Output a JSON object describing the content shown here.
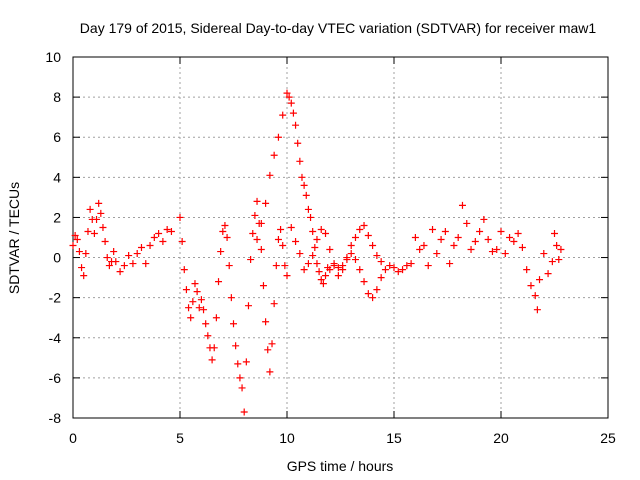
{
  "chart_data": {
    "type": "scatter",
    "title": "Day 179 of 2015, Sidereal Day-to-day VTEC variation (SDTVAR) for receiver maw1",
    "xlabel": "GPS time / hours",
    "ylabel": "SDTVAR / TECUs",
    "xlim": [
      0,
      25
    ],
    "ylim": [
      -8,
      10
    ],
    "xticks": [
      "0",
      "5",
      "10",
      "15",
      "20",
      "25"
    ],
    "yticks": [
      "-8",
      "-6",
      "-4",
      "-2",
      "0",
      "2",
      "4",
      "6",
      "8",
      "10"
    ],
    "grid": true,
    "marker": "plus",
    "color": "#ff0000",
    "series": [
      {
        "name": "SDTVAR",
        "points": [
          [
            0.0,
            0.6
          ],
          [
            0.1,
            1.1
          ],
          [
            0.2,
            0.9
          ],
          [
            0.3,
            0.3
          ],
          [
            0.4,
            -0.5
          ],
          [
            0.5,
            -0.9
          ],
          [
            0.6,
            0.2
          ],
          [
            0.7,
            1.3
          ],
          [
            0.8,
            2.4
          ],
          [
            0.9,
            1.9
          ],
          [
            1.0,
            1.2
          ],
          [
            1.1,
            1.9
          ],
          [
            1.2,
            2.7
          ],
          [
            1.3,
            2.2
          ],
          [
            1.4,
            1.5
          ],
          [
            1.5,
            0.8
          ],
          [
            1.6,
            0.0
          ],
          [
            1.7,
            -0.4
          ],
          [
            1.8,
            -0.2
          ],
          [
            1.9,
            0.3
          ],
          [
            2.0,
            -0.2
          ],
          [
            2.2,
            -0.7
          ],
          [
            2.4,
            -0.4
          ],
          [
            2.6,
            0.1
          ],
          [
            2.8,
            -0.3
          ],
          [
            3.0,
            0.2
          ],
          [
            3.2,
            0.5
          ],
          [
            3.4,
            -0.3
          ],
          [
            3.6,
            0.6
          ],
          [
            3.8,
            1.0
          ],
          [
            4.0,
            1.2
          ],
          [
            4.2,
            0.8
          ],
          [
            4.4,
            1.4
          ],
          [
            4.6,
            1.3
          ],
          [
            5.0,
            2.0
          ],
          [
            5.1,
            0.8
          ],
          [
            5.2,
            -0.6
          ],
          [
            5.3,
            -1.6
          ],
          [
            5.4,
            -2.5
          ],
          [
            5.5,
            -3.0
          ],
          [
            5.6,
            -2.2
          ],
          [
            5.7,
            -1.3
          ],
          [
            5.8,
            -1.7
          ],
          [
            5.9,
            -2.5
          ],
          [
            6.0,
            -2.1
          ],
          [
            6.1,
            -2.6
          ],
          [
            6.2,
            -3.3
          ],
          [
            6.3,
            -3.9
          ],
          [
            6.4,
            -4.5
          ],
          [
            6.5,
            -5.1
          ],
          [
            6.6,
            -4.5
          ],
          [
            6.7,
            -3.0
          ],
          [
            6.8,
            -1.2
          ],
          [
            6.9,
            0.3
          ],
          [
            7.0,
            1.3
          ],
          [
            7.1,
            1.6
          ],
          [
            7.2,
            1.0
          ],
          [
            7.3,
            -0.4
          ],
          [
            7.4,
            -2.0
          ],
          [
            7.5,
            -3.3
          ],
          [
            7.6,
            -4.4
          ],
          [
            7.7,
            -5.3
          ],
          [
            7.8,
            -6.0
          ],
          [
            7.9,
            -6.5
          ],
          [
            8.0,
            -7.7
          ],
          [
            8.1,
            -5.2
          ],
          [
            8.2,
            -2.4
          ],
          [
            8.3,
            -0.1
          ],
          [
            8.4,
            1.2
          ],
          [
            8.5,
            2.1
          ],
          [
            8.6,
            2.8
          ],
          [
            8.7,
            1.7
          ],
          [
            8.8,
            0.4
          ],
          [
            8.9,
            -1.4
          ],
          [
            9.0,
            -3.2
          ],
          [
            9.1,
            -4.6
          ],
          [
            9.2,
            -5.7
          ],
          [
            9.3,
            -4.3
          ],
          [
            9.4,
            -2.3
          ],
          [
            9.5,
            -0.4
          ],
          [
            9.6,
            0.9
          ],
          [
            9.7,
            1.4
          ],
          [
            9.8,
            0.6
          ],
          [
            9.9,
            -0.4
          ],
          [
            10.0,
            -0.9
          ],
          [
            8.6,
            0.9
          ],
          [
            8.8,
            1.7
          ],
          [
            9.0,
            2.7
          ],
          [
            9.2,
            4.1
          ],
          [
            9.4,
            5.1
          ],
          [
            9.6,
            6.0
          ],
          [
            9.8,
            7.1
          ],
          [
            10.0,
            8.2
          ],
          [
            10.1,
            8.0
          ],
          [
            10.2,
            7.7
          ],
          [
            10.3,
            7.2
          ],
          [
            10.4,
            6.6
          ],
          [
            10.5,
            5.7
          ],
          [
            10.6,
            4.8
          ],
          [
            10.7,
            4.0
          ],
          [
            10.8,
            3.6
          ],
          [
            10.9,
            3.1
          ],
          [
            11.0,
            2.4
          ],
          [
            11.1,
            2.0
          ],
          [
            11.2,
            1.3
          ],
          [
            11.3,
            0.5
          ],
          [
            11.4,
            -0.3
          ],
          [
            11.5,
            -0.7
          ],
          [
            11.6,
            -1.1
          ],
          [
            11.7,
            -1.3
          ],
          [
            11.8,
            -0.9
          ],
          [
            11.9,
            -0.5
          ],
          [
            12.0,
            -0.6
          ],
          [
            12.2,
            -0.3
          ],
          [
            12.4,
            -0.5
          ],
          [
            12.6,
            -0.4
          ],
          [
            12.8,
            -0.1
          ],
          [
            13.0,
            0.2
          ],
          [
            13.2,
            -0.1
          ],
          [
            13.4,
            -0.6
          ],
          [
            13.6,
            -1.2
          ],
          [
            13.8,
            -1.8
          ],
          [
            14.0,
            -2.0
          ],
          [
            14.2,
            -1.6
          ],
          [
            14.4,
            -1.0
          ],
          [
            14.6,
            -0.6
          ],
          [
            14.8,
            -0.4
          ],
          [
            15.0,
            -0.5
          ],
          [
            15.2,
            -0.7
          ],
          [
            15.4,
            -0.6
          ],
          [
            15.6,
            -0.4
          ],
          [
            15.8,
            -0.3
          ],
          [
            10.2,
            1.5
          ],
          [
            10.4,
            0.8
          ],
          [
            10.6,
            0.2
          ],
          [
            10.8,
            -0.6
          ],
          [
            11.0,
            -0.3
          ],
          [
            11.2,
            0.1
          ],
          [
            11.4,
            0.9
          ],
          [
            11.6,
            1.4
          ],
          [
            11.8,
            1.2
          ],
          [
            12.0,
            0.4
          ],
          [
            12.2,
            -0.4
          ],
          [
            12.4,
            -0.9
          ],
          [
            12.6,
            -0.6
          ],
          [
            12.8,
            0.0
          ],
          [
            13.0,
            0.6
          ],
          [
            13.2,
            1.0
          ],
          [
            13.4,
            1.4
          ],
          [
            13.6,
            1.6
          ],
          [
            13.8,
            1.1
          ],
          [
            14.0,
            0.6
          ],
          [
            14.2,
            0.1
          ],
          [
            14.4,
            -0.2
          ],
          [
            16.0,
            1.0
          ],
          [
            16.2,
            0.4
          ],
          [
            16.4,
            0.6
          ],
          [
            16.6,
            -0.4
          ],
          [
            16.8,
            1.4
          ],
          [
            17.0,
            0.2
          ],
          [
            17.2,
            0.9
          ],
          [
            17.4,
            1.3
          ],
          [
            17.6,
            -0.3
          ],
          [
            17.8,
            0.6
          ],
          [
            18.0,
            1.0
          ],
          [
            18.2,
            2.6
          ],
          [
            18.4,
            1.7
          ],
          [
            18.6,
            0.4
          ],
          [
            18.8,
            0.8
          ],
          [
            19.0,
            1.3
          ],
          [
            19.2,
            1.9
          ],
          [
            19.4,
            0.9
          ],
          [
            19.6,
            0.3
          ],
          [
            19.8,
            0.4
          ],
          [
            20.0,
            1.3
          ],
          [
            20.2,
            0.2
          ],
          [
            20.4,
            1.0
          ],
          [
            20.6,
            0.8
          ],
          [
            20.8,
            1.2
          ],
          [
            21.0,
            0.5
          ],
          [
            21.2,
            -0.6
          ],
          [
            21.4,
            -1.4
          ],
          [
            21.6,
            -1.9
          ],
          [
            21.7,
            -2.6
          ],
          [
            21.8,
            -1.1
          ],
          [
            22.0,
            0.2
          ],
          [
            22.2,
            -0.8
          ],
          [
            22.4,
            -0.2
          ],
          [
            22.5,
            1.2
          ],
          [
            22.6,
            0.6
          ],
          [
            22.7,
            -0.1
          ],
          [
            22.8,
            0.4
          ]
        ]
      }
    ]
  }
}
